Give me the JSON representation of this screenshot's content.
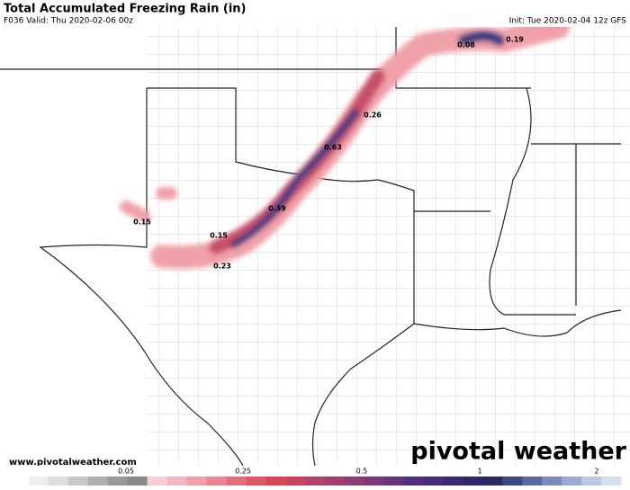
{
  "header": {
    "title": "Total Accumulated Freezing Rain (in)",
    "valid": "F036 Valid: Thu 2020-02-06 00z",
    "init": "Init: Tue 2020-02-04 12z GFS"
  },
  "map": {
    "point_labels": [
      "0.08",
      "0.19",
      "0.26",
      "0.63",
      "0.39",
      "0.15",
      "0.15",
      "0.23"
    ]
  },
  "footer": {
    "url": "www.pivotalweather.com",
    "logo": "pivotal weather"
  },
  "legend": {
    "labels": [
      "0.05",
      "0.25",
      "0.5",
      "1",
      "2"
    ]
  }
}
